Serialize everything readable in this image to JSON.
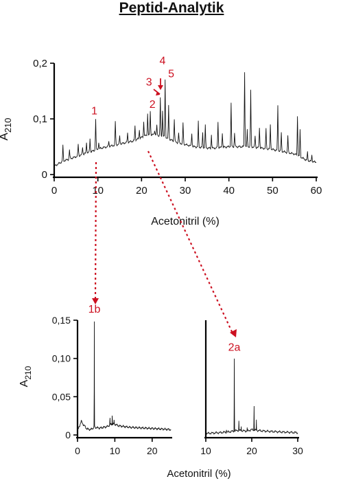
{
  "title": "Peptid-Analytik",
  "annotation_color": "#cc1020",
  "chart_data": [
    {
      "id": "main",
      "type": "line",
      "title": "Peptid-Analytik",
      "xlabel": "Acetonitril (%)",
      "ylabel_main": "A",
      "ylabel_sub": "210",
      "xlim": [
        0,
        60
      ],
      "ylim": [
        0,
        0.2
      ],
      "x_ticks": [
        0,
        10,
        20,
        30,
        40,
        50,
        60
      ],
      "x_tick_labels": [
        "0",
        "10",
        "20",
        "30",
        "40",
        "50",
        "60"
      ],
      "y_ticks": [
        0,
        0.1,
        0.2
      ],
      "y_tick_labels": [
        "0",
        "0,1",
        "0,2"
      ],
      "baseline": [
        [
          0,
          0.015
        ],
        [
          2,
          0.024
        ],
        [
          5,
          0.032
        ],
        [
          8,
          0.04
        ],
        [
          11,
          0.048
        ],
        [
          14,
          0.053
        ],
        [
          18,
          0.06
        ],
        [
          21,
          0.07
        ],
        [
          23,
          0.072
        ],
        [
          25,
          0.068
        ],
        [
          28,
          0.058
        ],
        [
          32,
          0.05
        ],
        [
          36,
          0.047
        ],
        [
          40,
          0.05
        ],
        [
          45,
          0.05
        ],
        [
          50,
          0.045
        ],
        [
          55,
          0.037
        ],
        [
          58,
          0.025
        ],
        [
          60,
          0.022
        ]
      ],
      "peaks": [
        [
          2,
          0.052
        ],
        [
          3.5,
          0.045
        ],
        [
          5.5,
          0.055
        ],
        [
          6.5,
          0.05
        ],
        [
          7.4,
          0.058
        ],
        [
          8.2,
          0.065
        ],
        [
          9.5,
          0.1
        ],
        [
          10.2,
          0.058
        ],
        [
          12.5,
          0.06
        ],
        [
          14,
          0.095
        ],
        [
          15,
          0.07
        ],
        [
          16.8,
          0.075
        ],
        [
          18.5,
          0.087
        ],
        [
          19.5,
          0.08
        ],
        [
          20.5,
          0.095
        ],
        [
          21.4,
          0.11
        ],
        [
          22,
          0.115
        ],
        [
          23,
          0.08
        ],
        [
          23.5,
          0.088
        ],
        [
          24.3,
          0.138
        ],
        [
          24.8,
          0.115
        ],
        [
          25.4,
          0.17
        ],
        [
          26.2,
          0.125
        ],
        [
          27.5,
          0.1
        ],
        [
          28.5,
          0.075
        ],
        [
          29.5,
          0.093
        ],
        [
          31.5,
          0.075
        ],
        [
          33,
          0.095
        ],
        [
          34,
          0.075
        ],
        [
          34.6,
          0.088
        ],
        [
          36,
          0.072
        ],
        [
          37.5,
          0.095
        ],
        [
          38.5,
          0.075
        ],
        [
          40.5,
          0.128
        ],
        [
          41.3,
          0.075
        ],
        [
          43.6,
          0.185
        ],
        [
          44.2,
          0.08
        ],
        [
          45,
          0.152
        ],
        [
          46,
          0.07
        ],
        [
          47,
          0.085
        ],
        [
          48.5,
          0.082
        ],
        [
          49.5,
          0.09
        ],
        [
          51.2,
          0.125
        ],
        [
          52,
          0.075
        ],
        [
          53.5,
          0.07
        ],
        [
          55.7,
          0.105
        ],
        [
          56.3,
          0.08
        ],
        [
          58,
          0.04
        ],
        [
          59,
          0.035
        ]
      ],
      "annotations": [
        {
          "label": "1",
          "x": 9.2,
          "y": 0.108
        },
        {
          "label": "2",
          "x": 22.5,
          "y": 0.12
        },
        {
          "label": "3",
          "x": 21.7,
          "y": 0.16
        },
        {
          "label": "4",
          "x": 24.8,
          "y": 0.198
        },
        {
          "label": "5",
          "x": 26.8,
          "y": 0.175
        }
      ]
    },
    {
      "id": "sub1",
      "type": "line",
      "xlabel": "Acetonitril (%)",
      "ylabel_main": "A",
      "ylabel_sub": "210",
      "xlim": [
        0,
        25
      ],
      "ylim": [
        0,
        0.15
      ],
      "x_ticks": [
        0,
        10,
        20
      ],
      "x_tick_labels": [
        "0",
        "10",
        "20"
      ],
      "y_ticks": [
        0,
        0.05,
        0.1,
        0.15
      ],
      "y_tick_labels": [
        "0",
        "0,05",
        "0,10",
        "0,15"
      ],
      "baseline": [
        [
          0,
          0.005
        ],
        [
          0.7,
          0.014
        ],
        [
          1,
          0.018
        ],
        [
          1.5,
          0.014
        ],
        [
          2.5,
          0.008
        ],
        [
          3.5,
          0.007
        ],
        [
          4.5,
          0.01
        ],
        [
          6,
          0.009
        ],
        [
          8,
          0.011
        ],
        [
          9,
          0.014
        ],
        [
          10,
          0.014
        ],
        [
          11,
          0.012
        ],
        [
          14,
          0.01
        ],
        [
          18,
          0.009
        ],
        [
          22,
          0.008
        ],
        [
          25,
          0.007
        ]
      ],
      "peaks": [
        [
          4.5,
          0.148
        ],
        [
          8.7,
          0.022
        ],
        [
          9.3,
          0.026
        ],
        [
          9.8,
          0.02
        ]
      ],
      "annotations": [
        {
          "label": "1b",
          "x": 4.5,
          "y": 0.16
        }
      ]
    },
    {
      "id": "sub2",
      "type": "line",
      "xlim": [
        10,
        30
      ],
      "ylim": [
        0,
        0.15
      ],
      "x_ticks": [
        10,
        20,
        30
      ],
      "x_tick_labels": [
        "10",
        "20",
        "30"
      ],
      "baseline": [
        [
          10,
          0.002
        ],
        [
          13,
          0.003
        ],
        [
          15,
          0.004
        ],
        [
          17,
          0.006
        ],
        [
          19,
          0.005
        ],
        [
          20,
          0.007
        ],
        [
          21,
          0.006
        ],
        [
          23,
          0.005
        ],
        [
          26,
          0.004
        ],
        [
          30,
          0.003
        ]
      ],
      "peaks": [
        [
          14.5,
          0.007
        ],
        [
          16.2,
          0.1
        ],
        [
          17.2,
          0.018
        ],
        [
          17.7,
          0.012
        ],
        [
          19,
          0.01
        ],
        [
          20.5,
          0.038
        ],
        [
          21,
          0.02
        ]
      ],
      "annotations": [
        {
          "label": "2a",
          "x": 16.2,
          "y": 0.11
        }
      ]
    }
  ]
}
